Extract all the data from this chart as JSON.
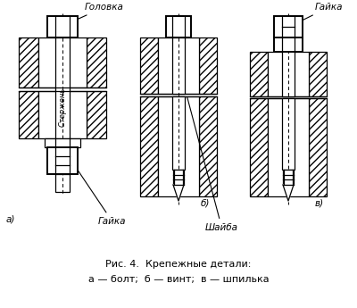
{
  "caption_line1": "Рис. 4.  Крепежные детали:",
  "caption_line2": "а — болт;  б — винт;  в — шпилька",
  "label_golovka": "Головка",
  "label_gayka_top": "Гайка",
  "label_sterjen": "Стержень",
  "label_shaiba": "Шайба",
  "label_gayka_bot": "Гайка",
  "label_a": "а)",
  "label_b": "б)",
  "label_v": "в)",
  "bg_color": "#ffffff",
  "line_color": "#000000"
}
